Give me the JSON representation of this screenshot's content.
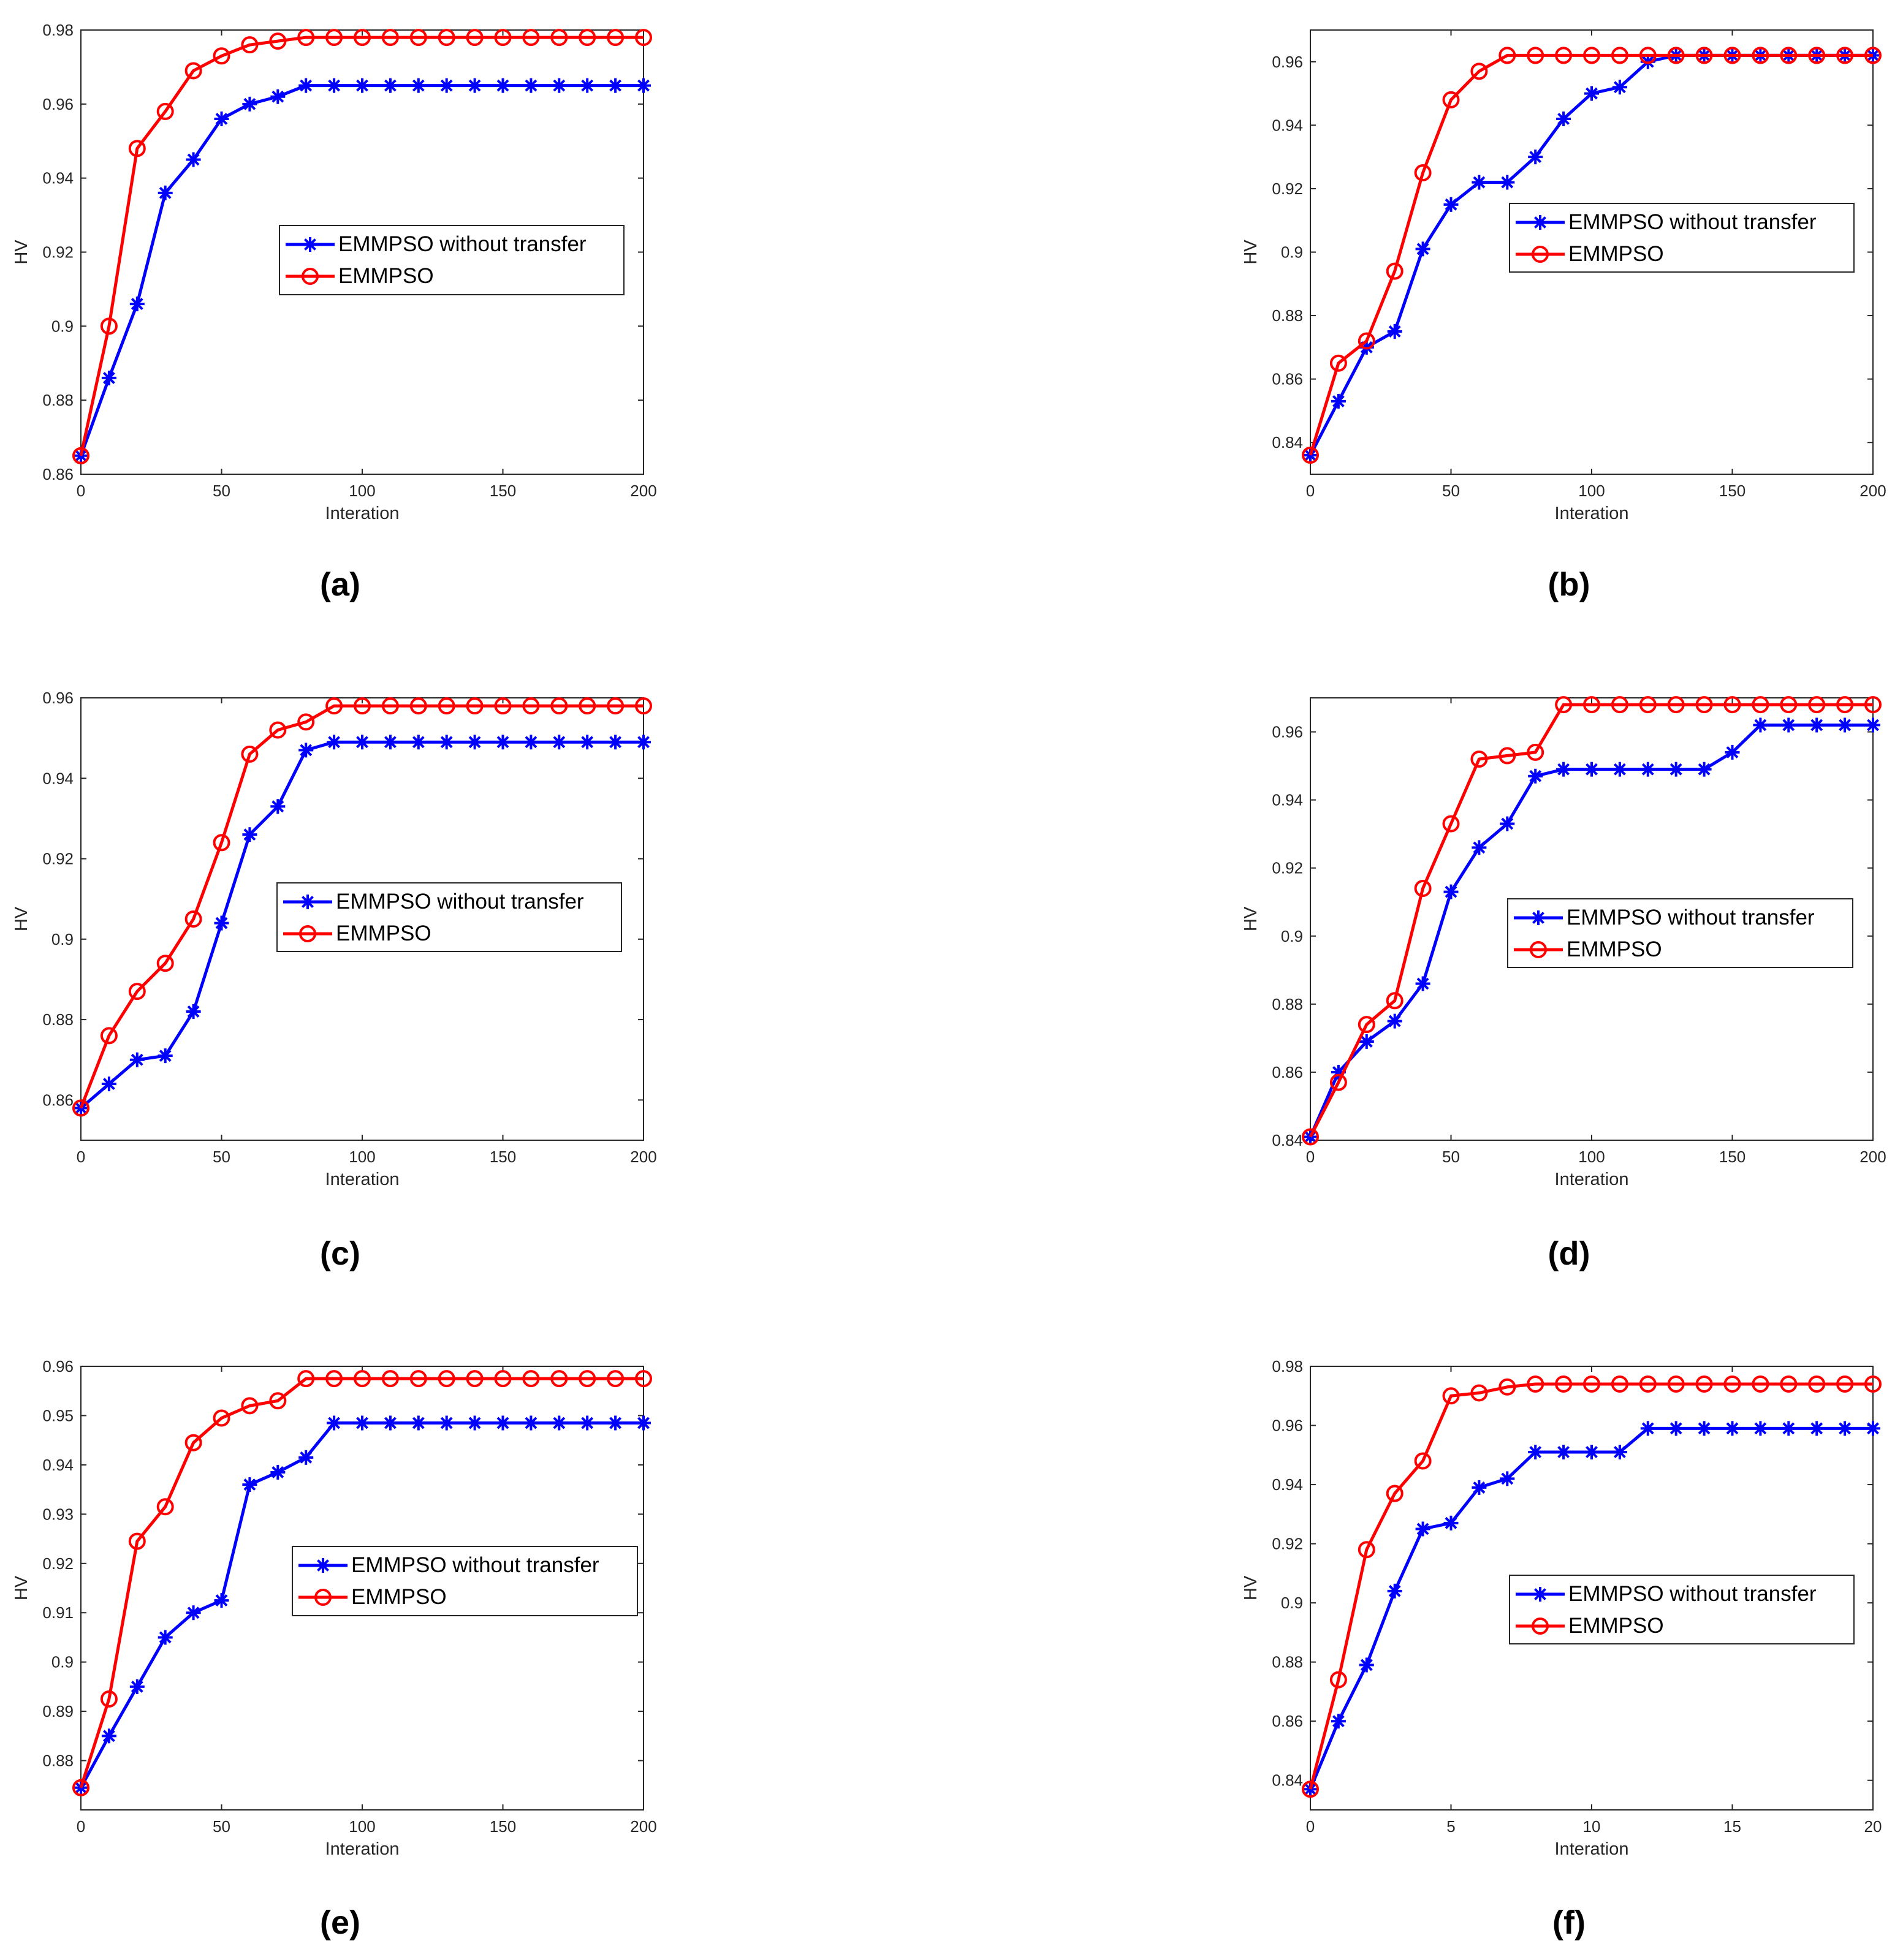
{
  "chart_data": [
    {
      "type": "line",
      "panel": "a",
      "caption": "(a)",
      "xlabel": "Interation",
      "ylabel": "HV",
      "xlim": [
        0,
        200
      ],
      "ylim": [
        0.86,
        0.98
      ],
      "xticks": [
        0,
        50,
        100,
        150,
        200
      ],
      "yticks": [
        0.86,
        0.88,
        0.9,
        0.92,
        0.94,
        0.96,
        0.98
      ],
      "ytick_labels": [
        "0.86",
        "0.88",
        "0.9",
        "0.92",
        "0.94",
        "0.96",
        "0.98"
      ],
      "legend": "center-right",
      "x": [
        0,
        10,
        20,
        30,
        40,
        50,
        60,
        70,
        80,
        90,
        100,
        110,
        120,
        130,
        140,
        150,
        160,
        170,
        180,
        190,
        200
      ],
      "series": [
        {
          "name": "EMMPSO without transfer",
          "color": "#0000ff",
          "marker": "asterisk",
          "values": [
            0.865,
            0.886,
            0.906,
            0.936,
            0.945,
            0.956,
            0.96,
            0.962,
            0.965,
            0.965,
            0.965,
            0.965,
            0.965,
            0.965,
            0.965,
            0.965,
            0.965,
            0.965,
            0.965,
            0.965,
            0.965
          ]
        },
        {
          "name": "EMMPSO",
          "color": "#ff0000",
          "marker": "circle",
          "values": [
            0.865,
            0.9,
            0.948,
            0.958,
            0.969,
            0.973,
            0.976,
            0.977,
            0.978,
            0.978,
            0.978,
            0.978,
            0.978,
            0.978,
            0.978,
            0.978,
            0.978,
            0.978,
            0.978,
            0.978,
            0.978
          ]
        }
      ]
    },
    {
      "type": "line",
      "panel": "b",
      "caption": "(b)",
      "xlabel": "Interation",
      "ylabel": "HV",
      "xlim": [
        0,
        200
      ],
      "ylim": [
        0.83,
        0.97
      ],
      "xticks": [
        0,
        50,
        100,
        150,
        200
      ],
      "yticks": [
        0.84,
        0.86,
        0.88,
        0.9,
        0.92,
        0.94,
        0.96
      ],
      "ytick_labels": [
        "0.84",
        "0.86",
        "0.88",
        "0.9",
        "0.92",
        "0.94",
        "0.96"
      ],
      "legend": "center-right",
      "x": [
        0,
        10,
        20,
        30,
        40,
        50,
        60,
        70,
        80,
        90,
        100,
        110,
        120,
        130,
        140,
        150,
        160,
        170,
        180,
        190,
        200
      ],
      "series": [
        {
          "name": "EMMPSO without transfer",
          "color": "#0000ff",
          "marker": "asterisk",
          "values": [
            0.836,
            0.853,
            0.87,
            0.875,
            0.901,
            0.915,
            0.922,
            0.922,
            0.93,
            0.942,
            0.95,
            0.952,
            0.96,
            0.962,
            0.962,
            0.962,
            0.962,
            0.962,
            0.962,
            0.962,
            0.962
          ]
        },
        {
          "name": "EMMPSO",
          "color": "#ff0000",
          "marker": "circle",
          "values": [
            0.836,
            0.865,
            0.872,
            0.894,
            0.925,
            0.948,
            0.957,
            0.962,
            0.962,
            0.962,
            0.962,
            0.962,
            0.962,
            0.962,
            0.962,
            0.962,
            0.962,
            0.962,
            0.962,
            0.962,
            0.962
          ]
        }
      ]
    },
    {
      "type": "line",
      "panel": "c",
      "caption": "(c)",
      "xlabel": "Interation",
      "ylabel": "HV",
      "xlim": [
        0,
        200
      ],
      "ylim": [
        0.85,
        0.96
      ],
      "xticks": [
        0,
        50,
        100,
        150,
        200
      ],
      "yticks": [
        0.86,
        0.88,
        0.9,
        0.92,
        0.94,
        0.96
      ],
      "ytick_labels": [
        "0.86",
        "0.88",
        "0.9",
        "0.92",
        "0.94",
        "0.96"
      ],
      "legend": "center-right",
      "x": [
        0,
        10,
        20,
        30,
        40,
        50,
        60,
        70,
        80,
        90,
        100,
        110,
        120,
        130,
        140,
        150,
        160,
        170,
        180,
        190,
        200
      ],
      "series": [
        {
          "name": "EMMPSO without transfer",
          "color": "#0000ff",
          "marker": "asterisk",
          "values": [
            0.858,
            0.864,
            0.87,
            0.871,
            0.882,
            0.904,
            0.926,
            0.933,
            0.947,
            0.949,
            0.949,
            0.949,
            0.949,
            0.949,
            0.949,
            0.949,
            0.949,
            0.949,
            0.949,
            0.949,
            0.949
          ]
        },
        {
          "name": "EMMPSO",
          "color": "#ff0000",
          "marker": "circle",
          "values": [
            0.858,
            0.876,
            0.887,
            0.894,
            0.905,
            0.924,
            0.946,
            0.952,
            0.954,
            0.958,
            0.958,
            0.958,
            0.958,
            0.958,
            0.958,
            0.958,
            0.958,
            0.958,
            0.958,
            0.958,
            0.958
          ]
        }
      ]
    },
    {
      "type": "line",
      "panel": "d",
      "caption": "(d)",
      "xlabel": "Interation",
      "ylabel": "HV",
      "xlim": [
        0,
        200
      ],
      "ylim": [
        0.84,
        0.97
      ],
      "xticks": [
        0,
        50,
        100,
        150,
        200
      ],
      "yticks": [
        0.84,
        0.86,
        0.88,
        0.9,
        0.92,
        0.94,
        0.96
      ],
      "ytick_labels": [
        "0.84",
        "0.86",
        "0.88",
        "0.9",
        "0.92",
        "0.94",
        "0.96"
      ],
      "legend": "center-right",
      "x": [
        0,
        10,
        20,
        30,
        40,
        50,
        60,
        70,
        80,
        90,
        100,
        110,
        120,
        130,
        140,
        150,
        160,
        170,
        180,
        190,
        200
      ],
      "series": [
        {
          "name": "EMMPSO without transfer",
          "color": "#0000ff",
          "marker": "asterisk",
          "values": [
            0.841,
            0.86,
            0.869,
            0.875,
            0.886,
            0.913,
            0.926,
            0.933,
            0.947,
            0.949,
            0.949,
            0.949,
            0.949,
            0.949,
            0.949,
            0.954,
            0.962,
            0.962,
            0.962,
            0.962,
            0.962
          ]
        },
        {
          "name": "EMMPSO",
          "color": "#ff0000",
          "marker": "circle",
          "values": [
            0.841,
            0.857,
            0.874,
            0.881,
            0.914,
            0.933,
            0.952,
            0.953,
            0.954,
            0.968,
            0.968,
            0.968,
            0.968,
            0.968,
            0.968,
            0.968,
            0.968,
            0.968,
            0.968,
            0.968,
            0.968
          ]
        }
      ]
    },
    {
      "type": "line",
      "panel": "e",
      "caption": "(e)",
      "xlabel": "Interation",
      "ylabel": "HV",
      "xlim": [
        0,
        200
      ],
      "ylim": [
        0.87,
        0.96
      ],
      "xticks": [
        0,
        50,
        100,
        150,
        200
      ],
      "yticks": [
        0.88,
        0.89,
        0.9,
        0.91,
        0.92,
        0.93,
        0.94,
        0.95,
        0.96
      ],
      "ytick_labels": [
        "0.88",
        "0.89",
        "0.9",
        "0.91",
        "0.92",
        "0.93",
        "0.94",
        "0.95",
        "0.96"
      ],
      "legend": "center-right",
      "x": [
        0,
        10,
        20,
        30,
        40,
        50,
        60,
        70,
        80,
        90,
        100,
        110,
        120,
        130,
        140,
        150,
        160,
        170,
        180,
        190,
        200
      ],
      "series": [
        {
          "name": "EMMPSO without transfer",
          "color": "#0000ff",
          "marker": "asterisk",
          "values": [
            0.8745,
            0.885,
            0.895,
            0.905,
            0.91,
            0.9125,
            0.936,
            0.9385,
            0.9415,
            0.9485,
            0.9485,
            0.9485,
            0.9485,
            0.9485,
            0.9485,
            0.9485,
            0.9485,
            0.9485,
            0.9485,
            0.9485,
            0.9485
          ]
        },
        {
          "name": "EMMPSO",
          "color": "#ff0000",
          "marker": "circle",
          "values": [
            0.8745,
            0.8925,
            0.9245,
            0.9315,
            0.9445,
            0.9495,
            0.952,
            0.953,
            0.9575,
            0.9575,
            0.9575,
            0.9575,
            0.9575,
            0.9575,
            0.9575,
            0.9575,
            0.9575,
            0.9575,
            0.9575,
            0.9575,
            0.9575
          ]
        }
      ]
    },
    {
      "type": "line",
      "panel": "f",
      "caption": "(f)",
      "xlabel": "Interation",
      "ylabel": "HV",
      "xlim": [
        0,
        20
      ],
      "ylim": [
        0.83,
        0.98
      ],
      "xticks": [
        0,
        5,
        10,
        15,
        20
      ],
      "yticks": [
        0.84,
        0.86,
        0.88,
        0.9,
        0.92,
        0.94,
        0.96,
        0.98
      ],
      "ytick_labels": [
        "0.84",
        "0.86",
        "0.88",
        "0.9",
        "0.92",
        "0.94",
        "0.96",
        "0.98"
      ],
      "legend": "center-right",
      "x": [
        0,
        1,
        2,
        3,
        4,
        5,
        6,
        7,
        8,
        9,
        10,
        11,
        12,
        13,
        14,
        15,
        16,
        17,
        18,
        19,
        20
      ],
      "series": [
        {
          "name": "EMMPSO without transfer",
          "color": "#0000ff",
          "marker": "asterisk",
          "values": [
            0.837,
            0.86,
            0.879,
            0.904,
            0.925,
            0.927,
            0.939,
            0.942,
            0.951,
            0.951,
            0.951,
            0.951,
            0.959,
            0.959,
            0.959,
            0.959,
            0.959,
            0.959,
            0.959,
            0.959,
            0.959
          ]
        },
        {
          "name": "EMMPSO",
          "color": "#ff0000",
          "marker": "circle",
          "values": [
            0.837,
            0.874,
            0.918,
            0.937,
            0.948,
            0.97,
            0.971,
            0.973,
            0.974,
            0.974,
            0.974,
            0.974,
            0.974,
            0.974,
            0.974,
            0.974,
            0.974,
            0.974,
            0.974,
            0.974,
            0.974
          ]
        }
      ]
    }
  ]
}
